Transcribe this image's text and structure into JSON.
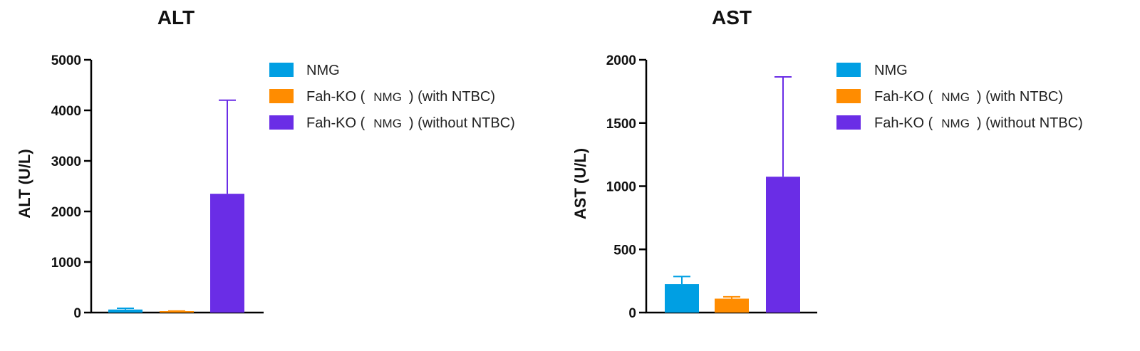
{
  "chart_data": [
    {
      "type": "bar",
      "title": "ALT",
      "ylabel": "ALT (U/L)",
      "xlabel": "",
      "ylim": [
        0,
        5000
      ],
      "yticks": [
        0,
        1000,
        2000,
        3000,
        4000,
        5000
      ],
      "categories": [
        "NMG",
        "Fah-KO (NMG) (with NTBC)",
        "Fah-KO (NMG) (without NTBC)"
      ],
      "values": [
        60,
        20,
        2350
      ],
      "error_upper": [
        85,
        30,
        4200
      ],
      "colors": [
        "#009fe3",
        "#ff8c00",
        "#6a2de6"
      ],
      "legend": {
        "placement": "top-right",
        "entries": [
          {
            "prefix": "NMG",
            "mid": "",
            "suffix": ""
          },
          {
            "prefix": "Fah-KO (",
            "mid": "NMG",
            "suffix": ") (with NTBC)"
          },
          {
            "prefix": "Fah-KO (",
            "mid": "NMG",
            "suffix": ") (without NTBC)"
          }
        ]
      },
      "grid": false
    },
    {
      "type": "bar",
      "title": "AST",
      "ylabel": "AST (U/L)",
      "xlabel": "",
      "ylim": [
        0,
        2000
      ],
      "yticks": [
        0,
        500,
        1000,
        1500,
        2000
      ],
      "categories": [
        "NMG",
        "Fah-KO (NMG) (with NTBC)",
        "Fah-KO (NMG) (without NTBC)"
      ],
      "values": [
        225,
        110,
        1075
      ],
      "error_upper": [
        285,
        125,
        1865
      ],
      "colors": [
        "#009fe3",
        "#ff8c00",
        "#6a2de6"
      ],
      "legend": {
        "placement": "top-right",
        "entries": [
          {
            "prefix": "NMG",
            "mid": "",
            "suffix": ""
          },
          {
            "prefix": "Fah-KO (",
            "mid": "NMG",
            "suffix": ") (with NTBC)"
          },
          {
            "prefix": "Fah-KO (",
            "mid": "NMG",
            "suffix": ") (without NTBC)"
          }
        ]
      },
      "grid": false
    }
  ]
}
